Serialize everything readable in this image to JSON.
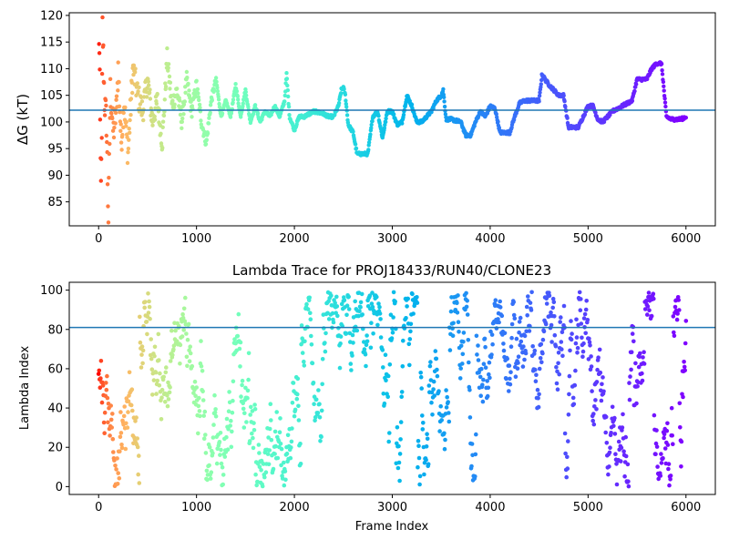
{
  "chart_data": [
    {
      "type": "scatter",
      "title": "",
      "xlabel": "",
      "ylabel": "ΔG (kT)",
      "xlim": [
        -300,
        6300
      ],
      "ylim": [
        80.5,
        120.5
      ],
      "xticks": [
        0,
        1000,
        2000,
        3000,
        4000,
        5000,
        6000
      ],
      "yticks": [
        85,
        90,
        95,
        100,
        105,
        110,
        115,
        120
      ],
      "hline": 102.2,
      "hline_color": "#1f77b4",
      "colormap": "rainbow_r",
      "trace_keypoints": [
        [
          0,
          120
        ],
        [
          10,
          110
        ],
        [
          20,
          92
        ],
        [
          30,
          90
        ],
        [
          40,
          118
        ],
        [
          60,
          104
        ],
        [
          80,
          100
        ],
        [
          100,
          82
        ],
        [
          120,
          106
        ],
        [
          150,
          98
        ],
        [
          180,
          102
        ],
        [
          200,
          110
        ],
        [
          230,
          96
        ],
        [
          260,
          104
        ],
        [
          300,
          94
        ],
        [
          350,
          110
        ],
        [
          400,
          105
        ],
        [
          450,
          102
        ],
        [
          500,
          108
        ],
        [
          550,
          100
        ],
        [
          600,
          104
        ],
        [
          650,
          96
        ],
        [
          700,
          112
        ],
        [
          750,
          103
        ],
        [
          800,
          106
        ],
        [
          850,
          100
        ],
        [
          900,
          108
        ],
        [
          950,
          102
        ],
        [
          1000,
          107
        ],
        [
          1050,
          100
        ],
        [
          1100,
          96
        ],
        [
          1150,
          104
        ],
        [
          1200,
          108
        ],
        [
          1250,
          101
        ],
        [
          1300,
          104
        ],
        [
          1350,
          101
        ],
        [
          1400,
          107
        ],
        [
          1450,
          101
        ],
        [
          1500,
          106
        ],
        [
          1550,
          100
        ],
        [
          1600,
          103
        ],
        [
          1650,
          100
        ],
        [
          1700,
          102
        ],
        [
          1750,
          101
        ],
        [
          1800,
          103
        ],
        [
          1850,
          101
        ],
        [
          1900,
          104
        ],
        [
          1920,
          109
        ],
        [
          1950,
          101
        ],
        [
          2000,
          98.5
        ],
        [
          2050,
          101
        ],
        [
          2100,
          101
        ],
        [
          2200,
          102
        ],
        [
          2300,
          101.5
        ],
        [
          2350,
          101
        ],
        [
          2400,
          101
        ],
        [
          2450,
          103
        ],
        [
          2480,
          106
        ],
        [
          2500,
          106.5
        ],
        [
          2520,
          105
        ],
        [
          2550,
          99.5
        ],
        [
          2600,
          98
        ],
        [
          2640,
          94
        ],
        [
          2700,
          94
        ],
        [
          2750,
          94
        ],
        [
          2800,
          101
        ],
        [
          2850,
          102
        ],
        [
          2900,
          97
        ],
        [
          2950,
          102
        ],
        [
          3000,
          102
        ],
        [
          3050,
          99.5
        ],
        [
          3100,
          100
        ],
        [
          3150,
          105
        ],
        [
          3200,
          103
        ],
        [
          3250,
          100
        ],
        [
          3300,
          100
        ],
        [
          3400,
          102
        ],
        [
          3450,
          104
        ],
        [
          3500,
          105
        ],
        [
          3520,
          106
        ],
        [
          3550,
          100.5
        ],
        [
          3600,
          100.5
        ],
        [
          3700,
          100
        ],
        [
          3750,
          97.5
        ],
        [
          3800,
          97.5
        ],
        [
          3850,
          100
        ],
        [
          3900,
          102
        ],
        [
          3950,
          101
        ],
        [
          4000,
          103
        ],
        [
          4050,
          102.5
        ],
        [
          4100,
          98
        ],
        [
          4150,
          98
        ],
        [
          4200,
          98
        ],
        [
          4250,
          101
        ],
        [
          4300,
          103.5
        ],
        [
          4350,
          104
        ],
        [
          4400,
          104
        ],
        [
          4450,
          104
        ],
        [
          4500,
          104
        ],
        [
          4530,
          109
        ],
        [
          4560,
          108
        ],
        [
          4600,
          107
        ],
        [
          4650,
          106
        ],
        [
          4700,
          105
        ],
        [
          4750,
          105
        ],
        [
          4800,
          99
        ],
        [
          4900,
          99
        ],
        [
          4950,
          101
        ],
        [
          5000,
          103
        ],
        [
          5050,
          103
        ],
        [
          5100,
          100.5
        ],
        [
          5150,
          100
        ],
        [
          5200,
          101
        ],
        [
          5250,
          102
        ],
        [
          5300,
          102.5
        ],
        [
          5350,
          103
        ],
        [
          5400,
          103.5
        ],
        [
          5450,
          104
        ],
        [
          5500,
          108
        ],
        [
          5550,
          108
        ],
        [
          5600,
          108
        ],
        [
          5650,
          110
        ],
        [
          5700,
          111
        ],
        [
          5750,
          111
        ],
        [
          5800,
          101
        ],
        [
          5850,
          100.5
        ],
        [
          5900,
          100.5
        ],
        [
          5950,
          100.5
        ],
        [
          6000,
          101
        ]
      ]
    },
    {
      "type": "scatter",
      "title": "Lambda Trace for PROJ18433/RUN40/CLONE23",
      "xlabel": "Frame Index",
      "ylabel": "Lambda Index",
      "xlim": [
        -300,
        6300
      ],
      "ylim": [
        -4,
        104
      ],
      "xticks": [
        0,
        1000,
        2000,
        3000,
        4000,
        5000,
        6000
      ],
      "yticks": [
        0,
        20,
        40,
        60,
        80,
        100
      ],
      "hline": 81,
      "hline_color": "#1f77b4",
      "colormap": "rainbow_r",
      "lambda_range": [
        0,
        99
      ],
      "frames": [
        0,
        6000
      ]
    }
  ]
}
